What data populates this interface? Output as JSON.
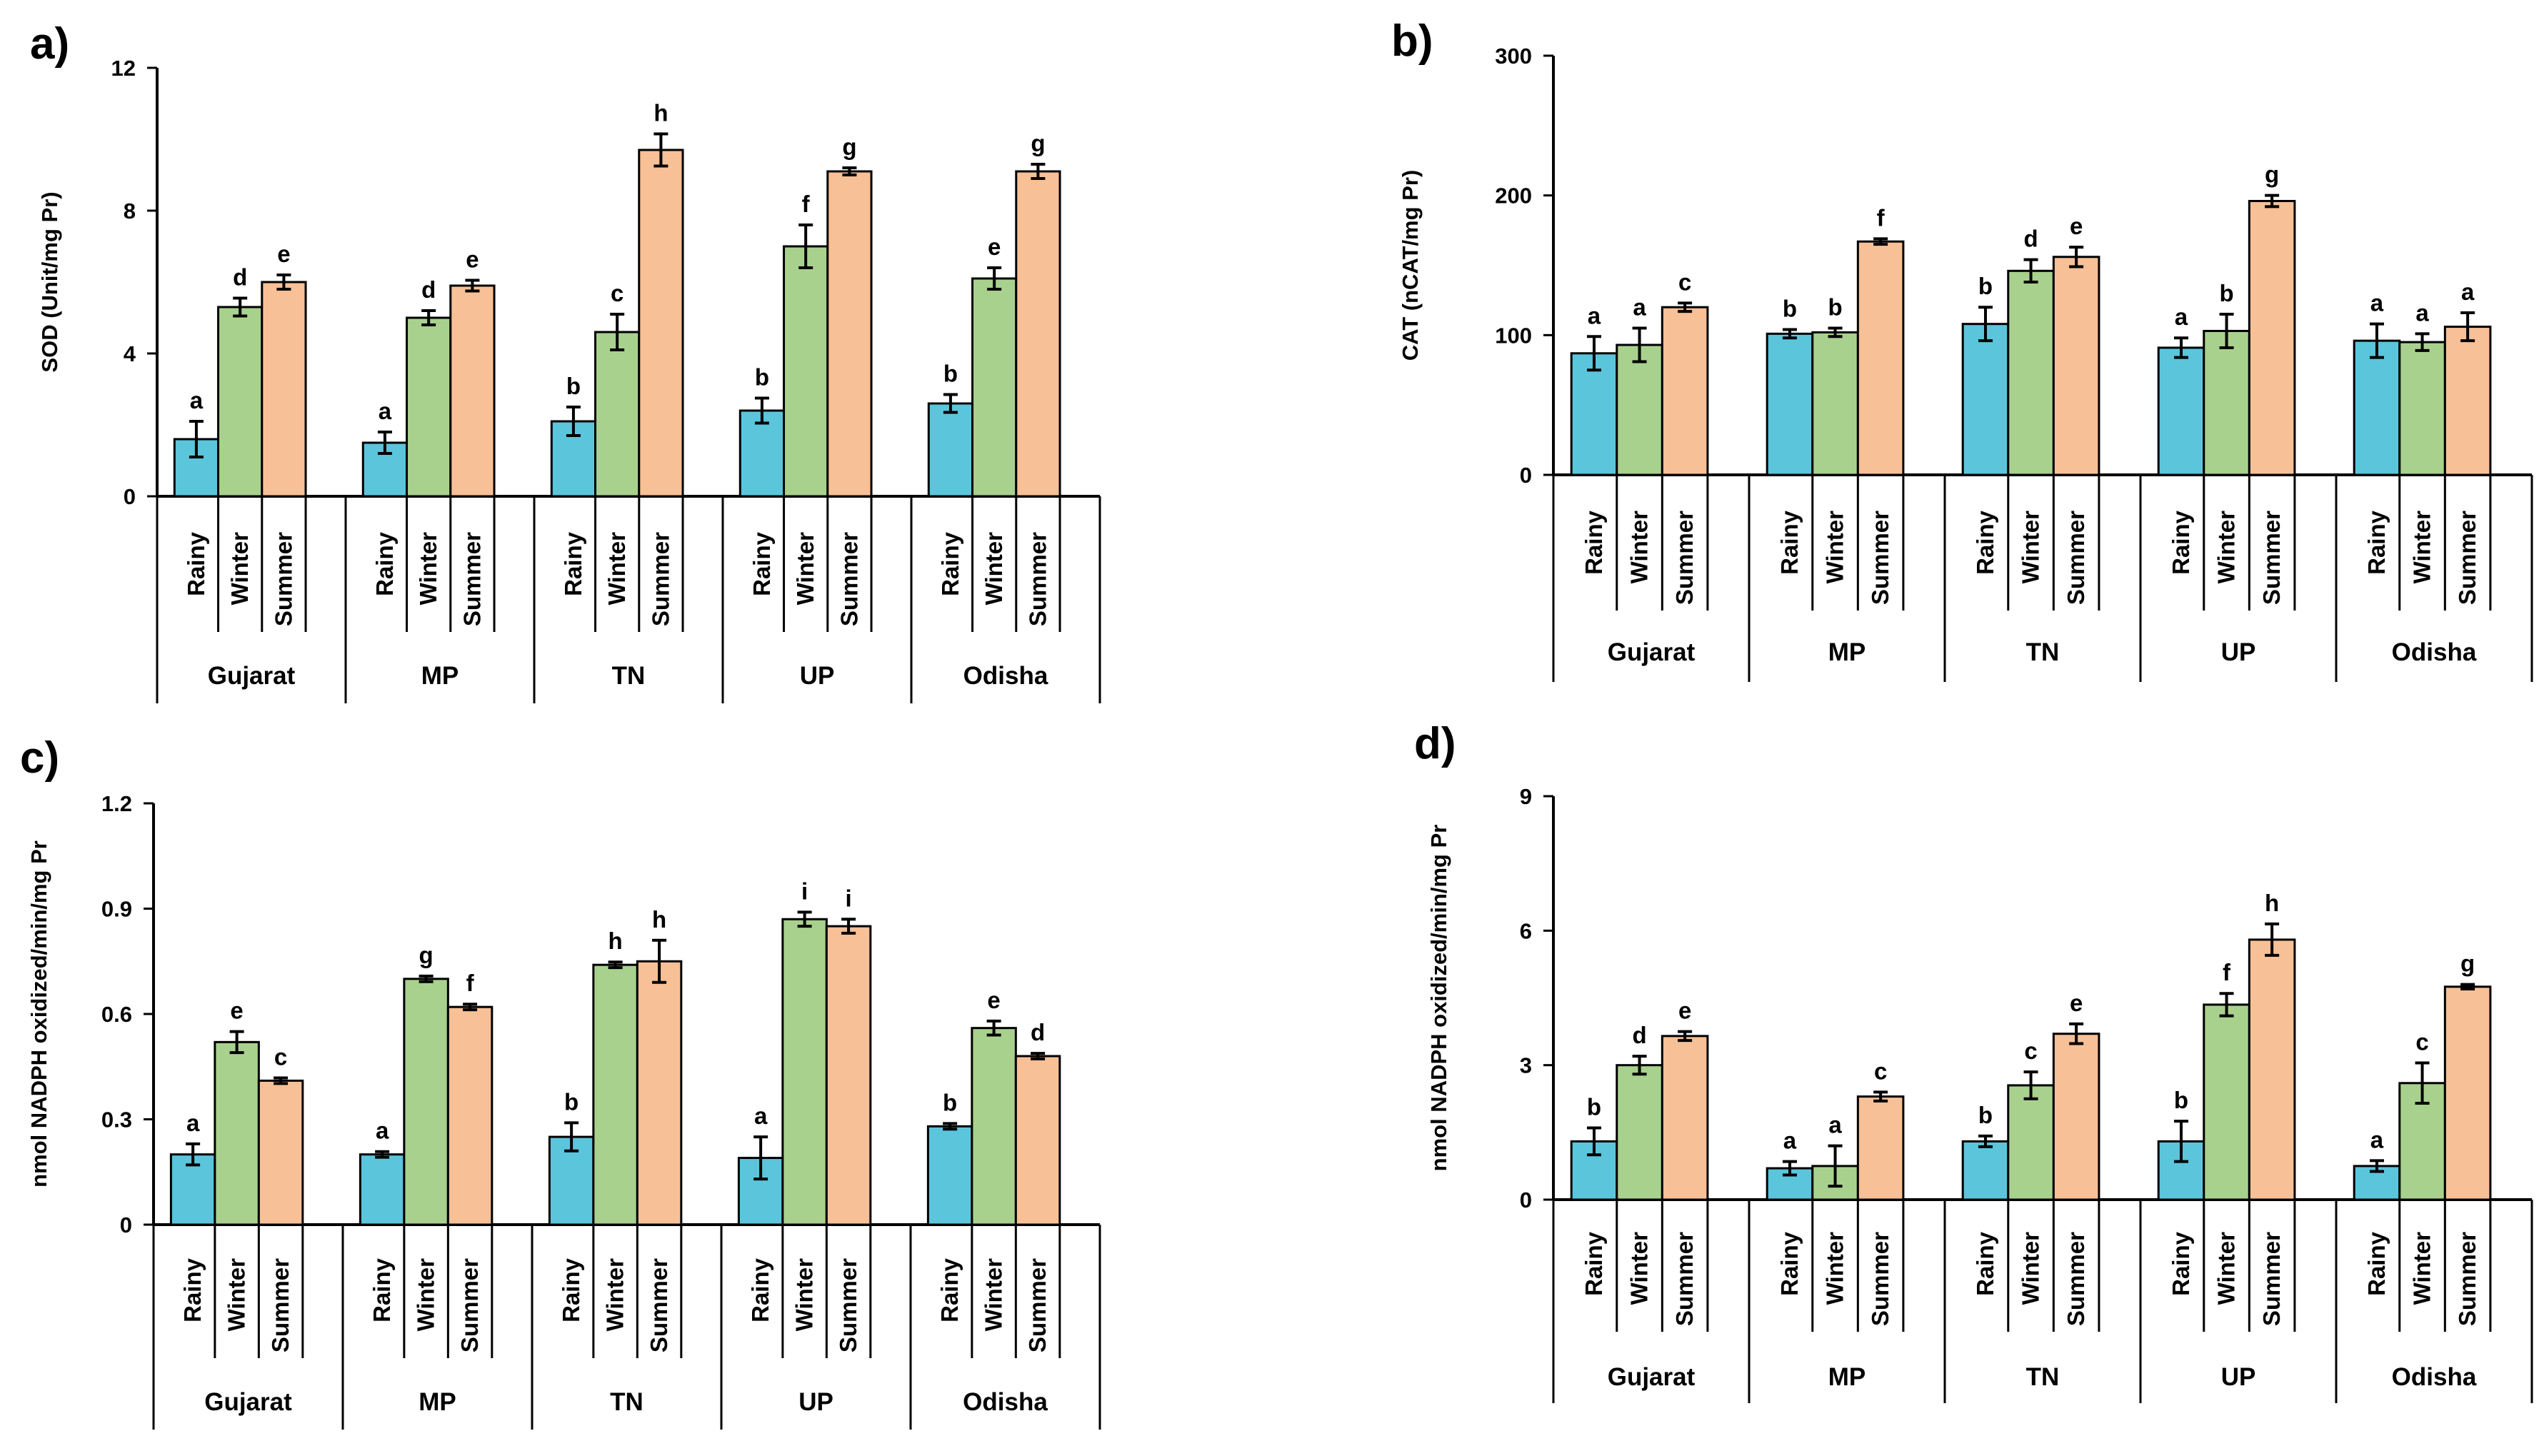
{
  "chart_data": [
    {
      "panel": "a)",
      "type": "bar",
      "ylabel": "SOD (Unit/mg Pr)",
      "ylim": [
        0,
        12
      ],
      "yticks": [
        "0",
        "4",
        "8",
        "12"
      ],
      "groups": [
        "Gujarat",
        "MP",
        "TN",
        "UP",
        "Odisha"
      ],
      "seasons": [
        "Rainy",
        "Winter",
        "Summer"
      ],
      "series": [
        {
          "name": "Rainy",
          "color": "#5bc5dc",
          "values": [
            1.6,
            1.5,
            2.1,
            2.4,
            2.6
          ],
          "errors": [
            0.5,
            0.3,
            0.4,
            0.35,
            0.25
          ],
          "letters": [
            "a",
            "a",
            "b",
            "b",
            "b"
          ]
        },
        {
          "name": "Winter",
          "color": "#a9d18e",
          "values": [
            5.3,
            5.0,
            4.6,
            7.0,
            6.1
          ],
          "errors": [
            0.25,
            0.2,
            0.5,
            0.6,
            0.3
          ],
          "letters": [
            "d",
            "d",
            "c",
            "f",
            "e"
          ]
        },
        {
          "name": "Summer",
          "color": "#f8c096",
          "values": [
            6.0,
            5.9,
            9.7,
            9.1,
            9.1
          ],
          "errors": [
            0.2,
            0.15,
            0.45,
            0.1,
            0.2
          ],
          "letters": [
            "e",
            "e",
            "h",
            "g",
            "g"
          ]
        }
      ]
    },
    {
      "panel": "b)",
      "type": "bar",
      "ylabel": "CAT (nCAT/mg Pr)",
      "ylim": [
        0,
        300
      ],
      "yticks": [
        "0",
        "100",
        "200",
        "300"
      ],
      "groups": [
        "Gujarat",
        "MP",
        "TN",
        "UP",
        "Odisha"
      ],
      "seasons": [
        "Rainy",
        "Winter",
        "Summer"
      ],
      "series": [
        {
          "name": "Rainy",
          "color": "#5bc5dc",
          "values": [
            87,
            101,
            108,
            91,
            96
          ],
          "errors": [
            12,
            3,
            12,
            7,
            12
          ],
          "letters": [
            "a",
            "b",
            "b",
            "a",
            "a"
          ]
        },
        {
          "name": "Winter",
          "color": "#a9d18e",
          "values": [
            93,
            102,
            146,
            103,
            95
          ],
          "errors": [
            12,
            3,
            8,
            12,
            6
          ],
          "letters": [
            "a",
            "b",
            "d",
            "b",
            "a"
          ]
        },
        {
          "name": "Summer",
          "color": "#f8c096",
          "values": [
            120,
            167,
            156,
            196,
            106
          ],
          "errors": [
            3,
            2,
            7,
            4,
            10
          ],
          "letters": [
            "c",
            "f",
            "e",
            "g",
            "a"
          ]
        }
      ]
    },
    {
      "panel": "c)",
      "type": "bar",
      "ylabel": "nmol NADPH oxidized/min/mg Pr",
      "ylim": [
        0,
        1.2
      ],
      "yticks": [
        "0",
        "0.3",
        "0.6",
        "0.9",
        "1.2"
      ],
      "groups": [
        "Gujarat",
        "MP",
        "TN",
        "UP",
        "Odisha"
      ],
      "seasons": [
        "Rainy",
        "Winter",
        "Summer"
      ],
      "series": [
        {
          "name": "Rainy",
          "color": "#5bc5dc",
          "values": [
            0.2,
            0.2,
            0.25,
            0.19,
            0.28
          ],
          "errors": [
            0.03,
            0.008,
            0.04,
            0.06,
            0.008
          ],
          "letters": [
            "a",
            "a",
            "b",
            "a",
            "b"
          ]
        },
        {
          "name": "Winter",
          "color": "#a9d18e",
          "values": [
            0.52,
            0.7,
            0.74,
            0.87,
            0.56
          ],
          "errors": [
            0.03,
            0.008,
            0.008,
            0.02,
            0.02
          ],
          "letters": [
            "e",
            "g",
            "h",
            "i",
            "e"
          ]
        },
        {
          "name": "Summer",
          "color": "#f8c096",
          "values": [
            0.41,
            0.62,
            0.75,
            0.85,
            0.48
          ],
          "errors": [
            0.008,
            0.008,
            0.06,
            0.02,
            0.008
          ],
          "letters": [
            "c",
            "f",
            "h",
            "i",
            "d"
          ]
        }
      ]
    },
    {
      "panel": "d)",
      "type": "bar",
      "ylabel": "nmol NADPH oxidized/min/mg Pr",
      "ylim": [
        0,
        9
      ],
      "yticks": [
        "0",
        "3",
        "6",
        "9"
      ],
      "groups": [
        "Gujarat",
        "MP",
        "TN",
        "UP",
        "Odisha"
      ],
      "seasons": [
        "Rainy",
        "Winter",
        "Summer"
      ],
      "series": [
        {
          "name": "Rainy",
          "color": "#5bc5dc",
          "values": [
            1.3,
            0.7,
            1.3,
            1.3,
            0.75
          ],
          "errors": [
            0.3,
            0.15,
            0.12,
            0.45,
            0.12
          ],
          "letters": [
            "b",
            "a",
            "b",
            "b",
            "a"
          ]
        },
        {
          "name": "Winter",
          "color": "#a9d18e",
          "values": [
            3.0,
            0.75,
            2.55,
            4.35,
            2.6
          ],
          "errors": [
            0.2,
            0.45,
            0.3,
            0.25,
            0.45
          ],
          "letters": [
            "d",
            "a",
            "c",
            "f",
            "c"
          ]
        },
        {
          "name": "Summer",
          "color": "#f8c096",
          "values": [
            3.65,
            2.3,
            3.7,
            5.8,
            4.75
          ],
          "errors": [
            0.1,
            0.1,
            0.22,
            0.35,
            0.05
          ],
          "letters": [
            "e",
            "c",
            "e",
            "h",
            "g"
          ]
        }
      ]
    }
  ]
}
